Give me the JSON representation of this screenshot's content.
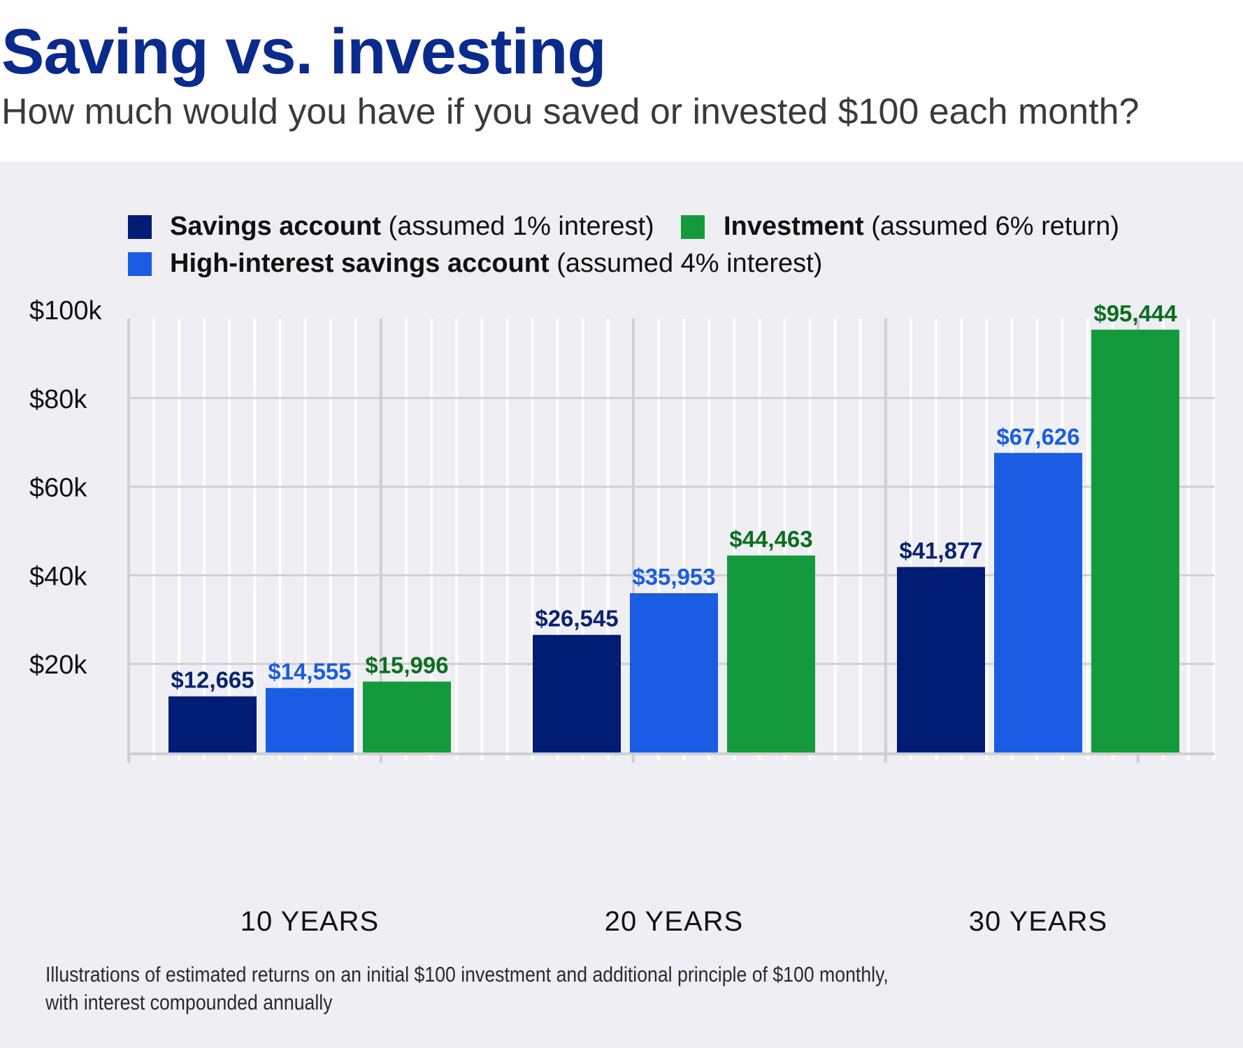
{
  "title": "Saving vs. investing",
  "subtitle": "How much would you have if you saved or invested $100 each month?",
  "footer": {
    "line1": "Illustrations of estimated returns on an initial $100 investment and additional principle of $100 monthly,",
    "line2": "with interest compounded annually"
  },
  "legend": [
    {
      "name": "Savings account",
      "note": "(assumed 1% interest)"
    },
    {
      "name": "Investment",
      "note": "(assumed 6% return)"
    },
    {
      "name": "High-interest savings account",
      "note": "(assumed 4% interest)"
    }
  ],
  "chart_data": {
    "type": "bar",
    "categories": [
      "10 YEARS",
      "20 YEARS",
      "30 YEARS"
    ],
    "series": [
      {
        "name": "Savings account",
        "color": "#001c74",
        "values": [
          12665,
          26545,
          41877
        ],
        "labels": [
          "$12,665",
          "$26,545",
          "$41,877"
        ],
        "label_color": "#0a2270"
      },
      {
        "name": "High-interest savings account",
        "color": "#1a5ce3",
        "values": [
          14555,
          35953,
          67626
        ],
        "labels": [
          "$14,555",
          "$35,953",
          "$67,626"
        ],
        "label_color": "#1a5ce3"
      },
      {
        "name": "Investment",
        "color": "#149a3c",
        "values": [
          15996,
          44463,
          95444
        ],
        "labels": [
          "$15,996",
          "$44,463",
          "$95,444"
        ],
        "label_color": "#0b6e1e"
      }
    ],
    "yticks": [
      "$20k",
      "$40k",
      "$60k",
      "$80k",
      "$100k"
    ],
    "ytick_values": [
      20000,
      40000,
      60000,
      80000,
      100000
    ],
    "ylim": [
      0,
      100000
    ],
    "grid": true,
    "legend_placement": "top"
  }
}
